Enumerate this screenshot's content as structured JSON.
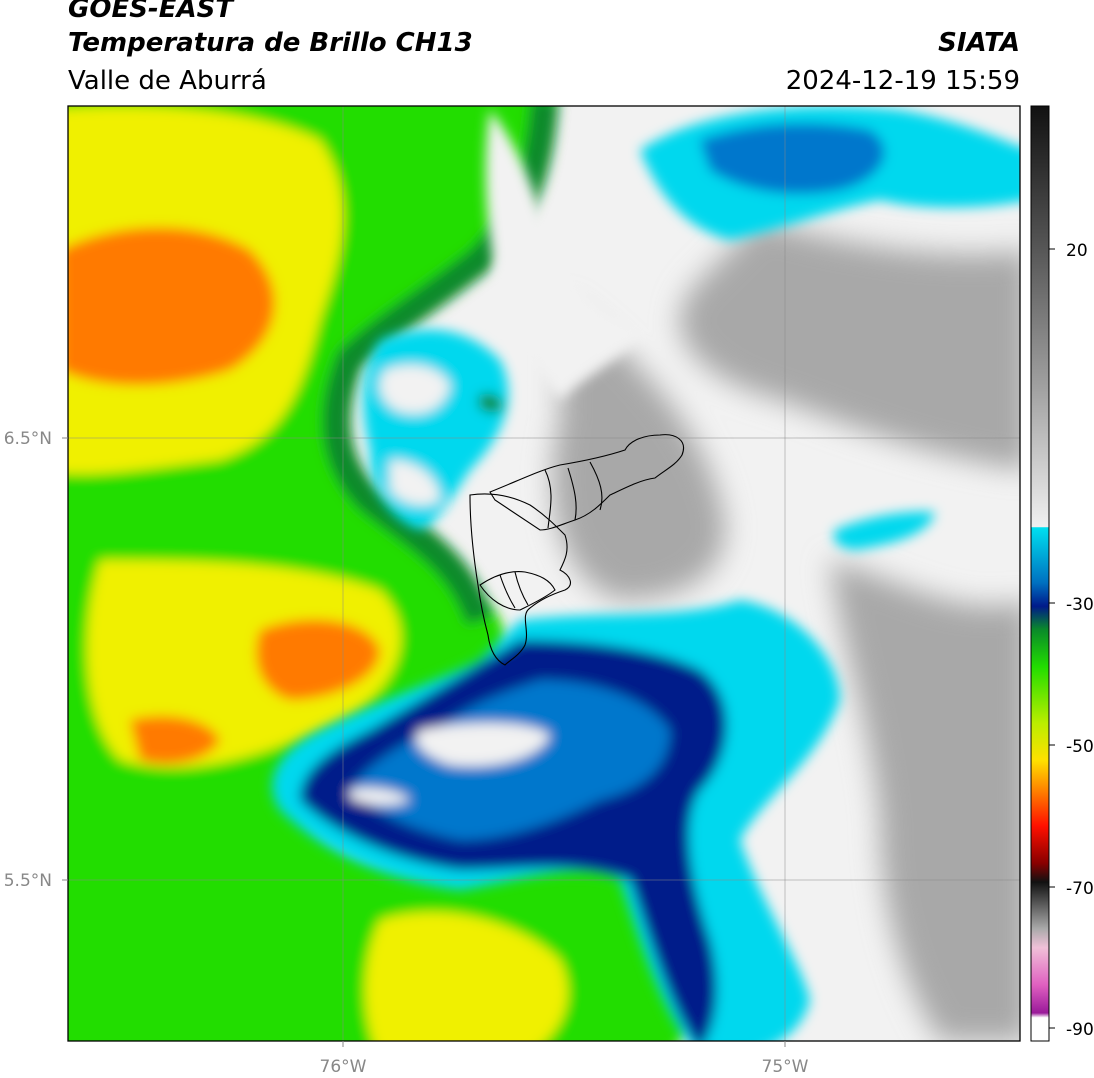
{
  "header": {
    "satellite": "GOES-EAST",
    "product": "Temperatura de Brillo CH13",
    "region": "Valle de Aburrá",
    "agency": "SIATA",
    "timestamp": "2024-12-19 15:59"
  },
  "map": {
    "lon_ticks": [
      "76°W",
      "75°W"
    ],
    "lat_ticks": [
      "6.5°N",
      "5.5°N"
    ],
    "colors": {
      "orange": "#ff7a00",
      "yellow": "#f0f000",
      "green": "#22dd00",
      "darkgreen": "#0a8a2a",
      "navy": "#001a8a",
      "blue": "#0077cc",
      "cyan": "#00d8ee",
      "white": "#f2f2f2",
      "gray": "#a8a8a8"
    }
  },
  "colorbar": {
    "ticks": [
      "20",
      "-30",
      "-50",
      "-70",
      "-90"
    ]
  }
}
